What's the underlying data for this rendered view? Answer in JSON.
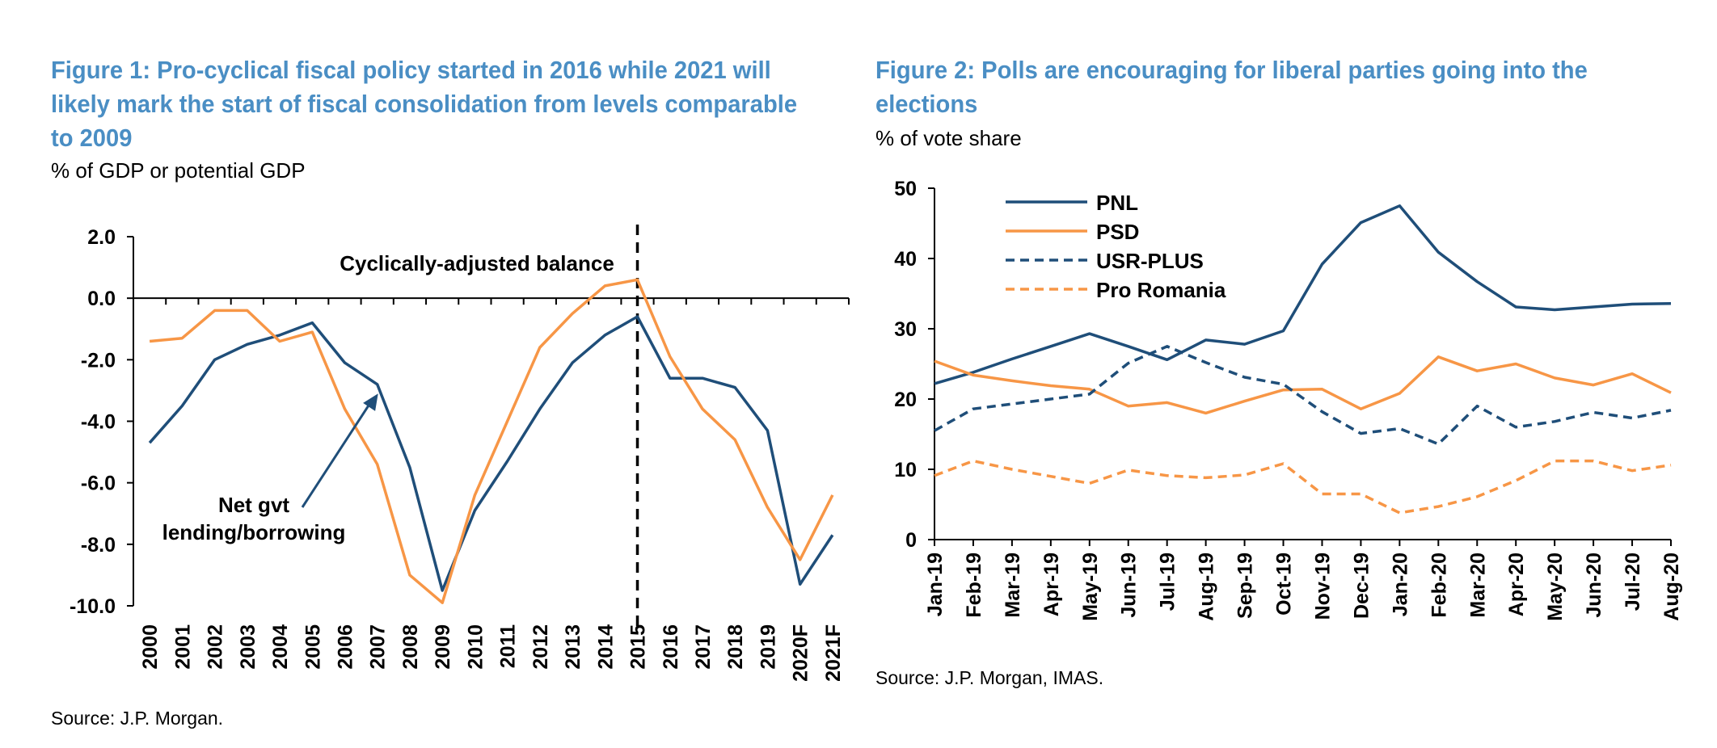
{
  "figure1": {
    "title": "Figure 1: Pro-cyclical fiscal policy started in 2016 while 2021 will likely mark the start of fiscal consolidation from levels comparable to 2009",
    "subtitle": "% of GDP or potential GDP",
    "source": "Source: J.P. Morgan."
  },
  "figure2": {
    "title": "Figure 2: Polls are encouraging for liberal parties going into the elections",
    "subtitle": "% of vote share",
    "source": "Source: J.P. Morgan, IMAS."
  },
  "colors": {
    "navy": "#1f4e79",
    "orange": "#f79646",
    "title_blue": "#4a8ec4"
  },
  "chart_data": [
    {
      "type": "line",
      "categories": [
        "2000",
        "2001",
        "2002",
        "2003",
        "2004",
        "2005",
        "2006",
        "2007",
        "2008",
        "2009",
        "2010",
        "2011",
        "2012",
        "2013",
        "2014",
        "2015",
        "2016",
        "2017",
        "2018",
        "2019",
        "2020F",
        "2021F"
      ],
      "ylim": [
        -10,
        2
      ],
      "yticks": [
        "2.0",
        "0.0",
        "-2.0",
        "-4.0",
        "-6.0",
        "-8.0",
        "-10.0"
      ],
      "series": [
        {
          "name": "Net gvt lending/borrowing",
          "color": "#1f4e79",
          "values": [
            -4.7,
            -3.5,
            -2.0,
            -1.5,
            -1.2,
            -0.8,
            -2.1,
            -2.8,
            -5.5,
            -9.5,
            -6.9,
            -5.3,
            -3.6,
            -2.1,
            -1.2,
            -0.6,
            -2.6,
            -2.6,
            -2.9,
            -4.3,
            -9.3,
            -7.7
          ]
        },
        {
          "name": "Cyclically-adjusted balance",
          "color": "#f79646",
          "values": [
            -1.4,
            -1.3,
            -0.4,
            -0.4,
            -1.4,
            -1.1,
            -3.6,
            -5.4,
            -9.0,
            -9.9,
            -6.4,
            -4.0,
            -1.6,
            -0.5,
            0.4,
            0.6,
            -1.9,
            -3.6,
            -4.6,
            -6.8,
            -8.5,
            -6.4
          ]
        }
      ],
      "vline_at": "2015",
      "annotations": [
        {
          "text": "Cyclically-adjusted balance"
        },
        {
          "text": "Net gvt"
        },
        {
          "text": "lending/borrowing"
        }
      ]
    },
    {
      "type": "line",
      "categories": [
        "Jan-19",
        "Feb-19",
        "Mar-19",
        "Apr-19",
        "May-19",
        "Jun-19",
        "Jul-19",
        "Aug-19",
        "Sep-19",
        "Oct-19",
        "Nov-19",
        "Dec-19",
        "Jan-20",
        "Feb-20",
        "Mar-20",
        "Apr-20",
        "May-20",
        "Jun-20",
        "Jul-20",
        "Aug-20"
      ],
      "ylim": [
        0,
        50
      ],
      "yticks": [
        "50",
        "40",
        "30",
        "20",
        "10",
        "0"
      ],
      "legend": "top-left",
      "series": [
        {
          "name": "PNL",
          "color": "#1f4e79",
          "dash": false,
          "values": [
            22.2,
            23.8,
            25.7,
            27.5,
            29.3,
            27.5,
            25.6,
            28.4,
            27.8,
            29.7,
            39.2,
            45.1,
            47.5,
            40.9,
            36.7,
            33.1,
            32.7,
            33.1,
            33.5,
            33.6
          ]
        },
        {
          "name": "PSD",
          "color": "#f79646",
          "dash": false,
          "values": [
            25.4,
            23.4,
            22.6,
            21.9,
            21.4,
            19.0,
            19.5,
            18.0,
            19.7,
            21.3,
            21.4,
            18.6,
            20.8,
            26.0,
            24.0,
            25.0,
            23.0,
            22.0,
            23.6,
            20.9
          ]
        },
        {
          "name": "USR-PLUS",
          "color": "#1f4e79",
          "dash": true,
          "values": [
            15.5,
            18.6,
            19.3,
            20.0,
            20.7,
            25.1,
            27.5,
            25.2,
            23.1,
            22.1,
            18.2,
            15.1,
            15.8,
            13.6,
            19.0,
            16.0,
            16.8,
            18.1,
            17.3,
            18.4
          ]
        },
        {
          "name": "Pro Romania",
          "color": "#f79646",
          "dash": true,
          "values": [
            9.1,
            11.2,
            10.0,
            9.0,
            8.0,
            9.9,
            9.1,
            8.8,
            9.2,
            10.8,
            6.5,
            6.5,
            3.8,
            4.7,
            6.1,
            8.4,
            11.2,
            11.2,
            9.8,
            10.6
          ]
        }
      ]
    }
  ]
}
